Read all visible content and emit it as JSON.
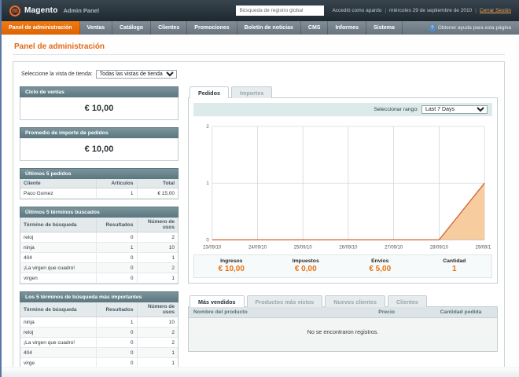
{
  "header": {
    "brand": "Magento",
    "brand_suffix": "Admin Panel",
    "search_value": "Búsqueda de registro global",
    "session": {
      "user_text": "Accedió como apardo",
      "separator": "|",
      "date_text": "miércoles 29 de septiembre de 2010",
      "logout_label": "Cerrar Sesión"
    }
  },
  "nav": {
    "items": [
      {
        "label": "Panel de administración",
        "active": true
      },
      {
        "label": "Ventas"
      },
      {
        "label": "Catálogo"
      },
      {
        "label": "Clientes"
      },
      {
        "label": "Promociones"
      },
      {
        "label": "Boletín de noticias"
      },
      {
        "label": "CMS"
      },
      {
        "label": "Informes"
      },
      {
        "label": "Sistema"
      }
    ],
    "help_label": "Obtener ayuda para esta página"
  },
  "page_title": "Panel de administración",
  "store_selector": {
    "label": "Seleccione la vista de tienda:",
    "value": "Todas las vistas de tienda"
  },
  "left": {
    "lifetime_sales": {
      "title": "Ciclo de ventas",
      "value": "€ 10,00"
    },
    "average_orders": {
      "title": "Promedio de importe de pedidos",
      "value": "€ 10,00"
    },
    "last_orders": {
      "title": "Últimos 5 pedidos",
      "columns": [
        "Cliente",
        "Artículos",
        "Total"
      ],
      "rows": [
        [
          "Paco Gomez",
          "1",
          "€ 15,00"
        ]
      ]
    },
    "last_search_terms": {
      "title": "Últimos 5 términos buscados",
      "columns": [
        "Término de búsqueda",
        "Resultados",
        "Número de usos"
      ],
      "rows": [
        [
          "reloj",
          "0",
          "2"
        ],
        [
          "ninja",
          "1",
          "10"
        ],
        [
          "404",
          "0",
          "1"
        ],
        [
          "¡La virgen que cuadro!",
          "0",
          "2"
        ],
        [
          "virgen",
          "0",
          "1"
        ]
      ]
    },
    "top_search_terms": {
      "title": "Los 5 términos de búsqueda más importantes",
      "columns": [
        "Término de búsqueda",
        "Resultados",
        "Número de usos"
      ],
      "rows": [
        [
          "ninja",
          "1",
          "10"
        ],
        [
          "reloj",
          "0",
          "2"
        ],
        [
          "¡La virgen que cuadro!",
          "0",
          "2"
        ],
        [
          "404",
          "0",
          "1"
        ],
        [
          "virge",
          "0",
          "1"
        ]
      ]
    }
  },
  "dashboard": {
    "tabs": [
      {
        "label": "Pedidos",
        "active": true
      },
      {
        "label": "Importes"
      }
    ],
    "range_label": "Seleccionar rango:",
    "range_value": "Last 7 Days",
    "chart_data": {
      "type": "area",
      "x": [
        "23/09/10",
        "24/09/10",
        "25/09/10",
        "26/09/10",
        "27/09/10",
        "28/09/10",
        "29/09/10"
      ],
      "series": [
        {
          "name": "Pedidos",
          "values": [
            0,
            0,
            0,
            0,
            0,
            0,
            1
          ]
        }
      ],
      "ylim": [
        0,
        2
      ],
      "yticks": [
        0,
        1,
        2
      ],
      "grid": true,
      "fill_color": "#f6c695",
      "line_color": "#d0602f"
    },
    "totals": [
      {
        "label": "Ingresos",
        "value": "€ 10,00"
      },
      {
        "label": "Impuestos",
        "value": "€ 0,00"
      },
      {
        "label": "Envíos",
        "value": "€ 5,00"
      },
      {
        "label": "Cantidad",
        "value": "1"
      }
    ],
    "bottom_tabs": [
      {
        "label": "Más vendidos",
        "active": true
      },
      {
        "label": "Productos más vistos"
      },
      {
        "label": "Nuevos clientes"
      },
      {
        "label": "Clientes"
      }
    ],
    "products_grid": {
      "columns": [
        "Nombre del producto",
        "Precio",
        "Cantidad pedida"
      ],
      "empty_text": "No se encontraron registros."
    }
  },
  "colors": {
    "accent": "#e96d10",
    "header_bg": "#2a363f",
    "nav_bg": "#6f7c86",
    "panel_header_bg": "#5f7b85"
  }
}
